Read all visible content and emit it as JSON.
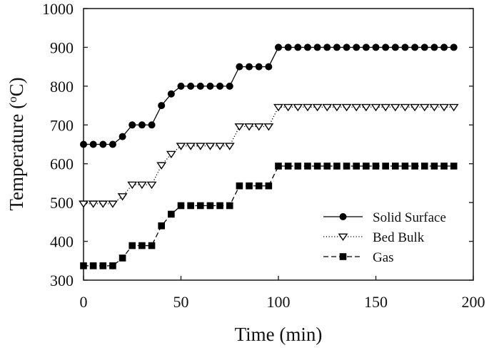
{
  "chart_data": {
    "type": "line",
    "title": "",
    "xlabel": "Time (min)",
    "ylabel": "Temperature (°C)",
    "ylabel_parts": {
      "main": "Temperature (",
      "sup": "o",
      "end": "C)"
    },
    "xlim": [
      0,
      200
    ],
    "ylim": [
      300,
      1000
    ],
    "xticks": [
      0,
      50,
      100,
      150,
      200
    ],
    "yticks": [
      300,
      400,
      500,
      600,
      700,
      800,
      900,
      1000
    ],
    "grid": false,
    "legend_position": "lower right",
    "x": [
      0,
      5,
      10,
      15,
      20,
      25,
      30,
      35,
      40,
      45,
      50,
      55,
      60,
      65,
      70,
      75,
      80,
      85,
      90,
      95,
      100,
      105,
      110,
      115,
      120,
      125,
      130,
      135,
      140,
      145,
      150,
      155,
      160,
      165,
      170,
      175,
      180,
      185,
      190
    ],
    "series": [
      {
        "name": "Solid Surface",
        "line_style": "solid",
        "marker": "filled-circle",
        "color": "#000000",
        "values": [
          650,
          650,
          650,
          650,
          670,
          700,
          700,
          700,
          750,
          780,
          800,
          800,
          800,
          800,
          800,
          800,
          850,
          850,
          850,
          850,
          900,
          900,
          900,
          900,
          900,
          900,
          900,
          900,
          900,
          900,
          900,
          900,
          900,
          900,
          900,
          900,
          900,
          900,
          900
        ]
      },
      {
        "name": "Bed Bulk",
        "line_style": "dotted",
        "marker": "open-down-triangle",
        "color": "#000000",
        "values": [
          497,
          497,
          497,
          497,
          516,
          546,
          546,
          546,
          596,
          625,
          646,
          646,
          646,
          646,
          646,
          646,
          696,
          696,
          696,
          696,
          746,
          746,
          746,
          746,
          746,
          746,
          746,
          746,
          746,
          746,
          746,
          746,
          746,
          746,
          746,
          746,
          746,
          746,
          746
        ]
      },
      {
        "name": "Gas",
        "line_style": "dashed",
        "marker": "filled-square",
        "color": "#000000",
        "values": [
          337,
          337,
          337,
          337,
          357,
          389,
          389,
          389,
          440,
          470,
          492,
          492,
          492,
          492,
          492,
          492,
          543,
          543,
          543,
          543,
          594,
          594,
          594,
          594,
          594,
          594,
          594,
          594,
          594,
          594,
          594,
          594,
          594,
          594,
          594,
          594,
          594,
          594,
          594
        ]
      }
    ]
  }
}
